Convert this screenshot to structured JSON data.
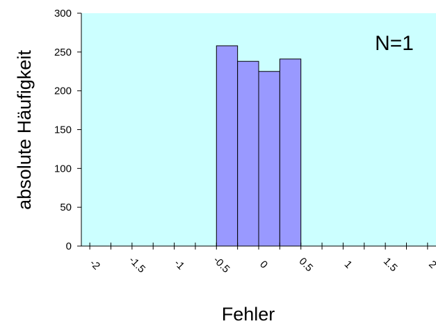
{
  "chart_data": {
    "type": "bar",
    "title": "",
    "annotation": "N=1",
    "xlabel": "Fehler",
    "ylabel": "absolute Häufigkeit",
    "xlim": [
      -2.1,
      2.1
    ],
    "ylim": [
      0,
      300
    ],
    "x_ticks": [
      "-2",
      "-1.5",
      "-1",
      "-0.5",
      "0",
      "0.5",
      "1",
      "1.5",
      "2"
    ],
    "x_tick_values": [
      -2,
      -1.5,
      -1,
      -0.5,
      0,
      0.5,
      1,
      1.5,
      2
    ],
    "x_minor_ticks": [
      -1.75,
      -1.25,
      -0.75,
      -0.25,
      0.25,
      0.75,
      1.25,
      1.75
    ],
    "y_ticks": [
      "0",
      "50",
      "100",
      "150",
      "200",
      "250",
      "300"
    ],
    "y_tick_values": [
      0,
      50,
      100,
      150,
      200,
      250,
      300
    ],
    "bin_width": 0.25,
    "bins": [
      {
        "start": -0.5,
        "end": -0.25,
        "value": 258
      },
      {
        "start": -0.25,
        "end": 0,
        "value": 238
      },
      {
        "start": 0,
        "end": 0.25,
        "value": 225
      },
      {
        "start": 0.25,
        "end": 0.5,
        "value": 241
      }
    ],
    "grid": false,
    "colors": {
      "plot_area": "#ccffff",
      "bar_fill": "#9999ff",
      "bar_stroke": "#000000"
    }
  }
}
